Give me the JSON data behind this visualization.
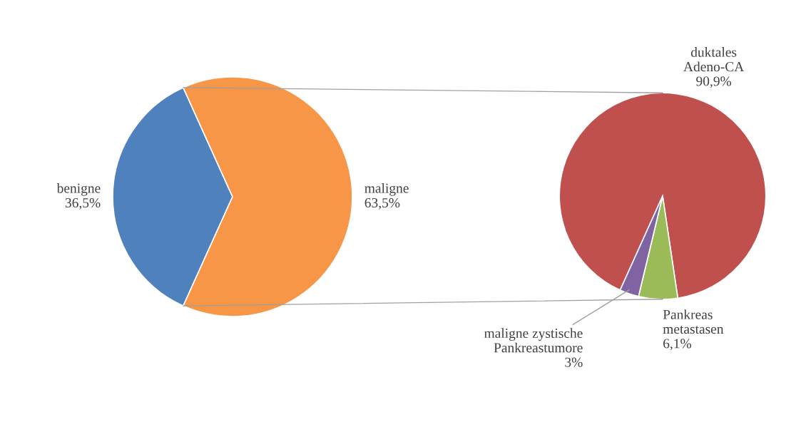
{
  "chart_data": [
    {
      "type": "pie",
      "categories": [
        "benigne",
        "maligne"
      ],
      "values": [
        36.5,
        63.5
      ],
      "colors": [
        "#4f81bd",
        "#f79646"
      ],
      "value_labels": [
        "36,5%",
        "63,5%"
      ]
    },
    {
      "type": "pie",
      "categories": [
        "duktales\nAdeno-CA",
        "Pankreas\nmetastasen",
        "maligne zystische\nPankreastumore"
      ],
      "values": [
        90.9,
        6.1,
        3
      ],
      "colors": [
        "#c0504d",
        "#9bbb59",
        "#8064a2"
      ],
      "value_labels": [
        "90,9%",
        "6,1%",
        "3%"
      ]
    }
  ]
}
